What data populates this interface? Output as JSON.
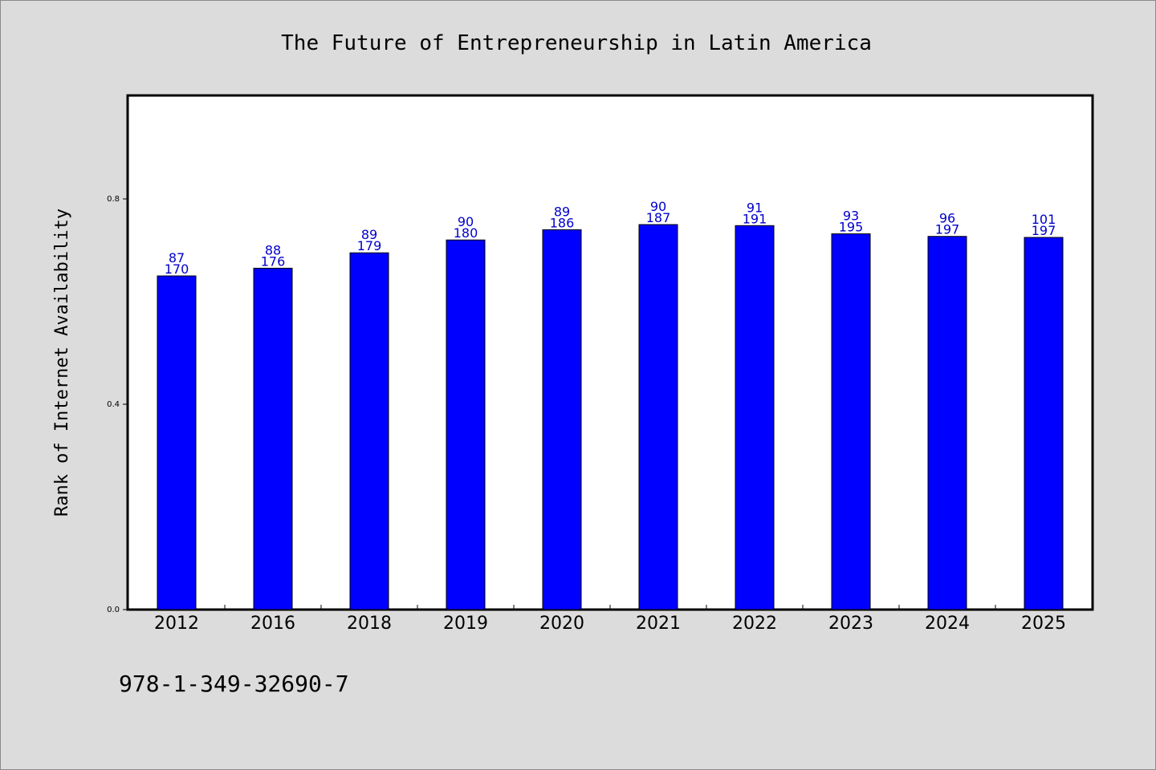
{
  "colors": {
    "background": "#dcdcdc",
    "plot_background": "#ffffff",
    "bar_fill": "#0000ff",
    "label_text": "#0000cc",
    "axis": "#000000"
  },
  "footer": {
    "code": "978-1-349-32690-7"
  },
  "chart_data": {
    "type": "bar",
    "title": "The Future of Entrepreneurship in Latin America",
    "xlabel": "",
    "ylabel": "Rank of Internet Availability",
    "categories": [
      "2012",
      "2016",
      "2018",
      "2019",
      "2020",
      "2021",
      "2022",
      "2023",
      "2024",
      "2025"
    ],
    "series": [
      {
        "values": [
          0.65,
          0.665,
          0.695,
          0.72,
          0.74,
          0.75,
          0.748,
          0.732,
          0.727,
          0.725
        ]
      }
    ],
    "data_labels": {
      "top": [
        "87",
        "88",
        "89",
        "90",
        "89",
        "90",
        "91",
        "93",
        "96",
        "101"
      ],
      "bottom": [
        "170",
        "176",
        "179",
        "180",
        "186",
        "187",
        "191",
        "195",
        "197",
        "197"
      ]
    },
    "ylim": [
      0,
      1.0
    ],
    "yticks": [
      "0.0",
      "0.4",
      "0.8"
    ],
    "grid": false,
    "legend": "none"
  }
}
